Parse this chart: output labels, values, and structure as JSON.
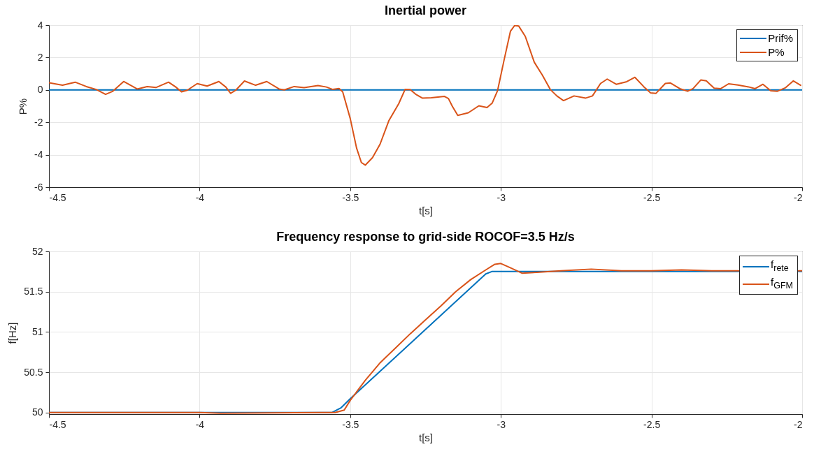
{
  "chart_data": [
    {
      "type": "line",
      "title": "Inertial power",
      "xlabel": "t[s]",
      "ylabel": "P%",
      "xlim": [
        -4.5,
        -2
      ],
      "ylim": [
        -6,
        4
      ],
      "xticks": [
        -4.5,
        -4,
        -3.5,
        -3,
        -2.5,
        -2
      ],
      "yticks": [
        -6,
        -4,
        -2,
        0,
        2,
        4
      ],
      "grid": true,
      "legend": "top right",
      "series": [
        {
          "name": "Prif%",
          "color": "#0072bd",
          "x": [
            -4.5,
            -2
          ],
          "values": [
            0,
            0
          ]
        },
        {
          "name": "P%",
          "color": "#d95319",
          "x": [
            -4.5,
            -4.455,
            -4.413,
            -4.376,
            -4.343,
            -4.312,
            -4.289,
            -4.252,
            -4.207,
            -4.174,
            -4.145,
            -4.103,
            -4.079,
            -4.06,
            -4.041,
            -4.008,
            -3.975,
            -3.936,
            -3.913,
            -3.897,
            -3.88,
            -3.851,
            -3.814,
            -3.777,
            -3.736,
            -3.719,
            -3.686,
            -3.653,
            -3.607,
            -3.579,
            -3.558,
            -3.537,
            -3.525,
            -3.5,
            -3.479,
            -3.463,
            -3.45,
            -3.426,
            -3.401,
            -3.372,
            -3.339,
            -3.318,
            -3.301,
            -3.283,
            -3.261,
            -3.231,
            -3.187,
            -3.174,
            -3.161,
            -3.143,
            -3.108,
            -3.073,
            -3.046,
            -3.029,
            -3.011,
            -2.989,
            -2.968,
            -2.954,
            -2.941,
            -2.919,
            -2.889,
            -2.862,
            -2.836,
            -2.814,
            -2.792,
            -2.757,
            -2.718,
            -2.696,
            -2.669,
            -2.647,
            -2.617,
            -2.582,
            -2.555,
            -2.525,
            -2.503,
            -2.485,
            -2.454,
            -2.437,
            -2.406,
            -2.38,
            -2.362,
            -2.336,
            -2.318,
            -2.292,
            -2.27,
            -2.244,
            -2.213,
            -2.178,
            -2.156,
            -2.13,
            -2.104,
            -2.082,
            -2.055,
            -2.029,
            -2.003
          ],
          "values": [
            0.44,
            0.29,
            0.48,
            0.21,
            0.03,
            -0.27,
            -0.09,
            0.52,
            0.06,
            0.21,
            0.15,
            0.48,
            0.18,
            -0.12,
            -0.02,
            0.39,
            0.24,
            0.52,
            0.18,
            -0.21,
            -0.02,
            0.55,
            0.29,
            0.52,
            0.06,
            0,
            0.21,
            0.14,
            0.27,
            0.18,
            0.03,
            0.09,
            -0.12,
            -1.76,
            -3.58,
            -4.48,
            -4.64,
            -4.18,
            -3.35,
            -1.91,
            -0.85,
            0.03,
            0.02,
            -0.26,
            -0.5,
            -0.48,
            -0.4,
            -0.53,
            -1.01,
            -1.57,
            -1.41,
            -0.98,
            -1.09,
            -0.82,
            -0.05,
            1.87,
            3.63,
            3.98,
            3.95,
            3.31,
            1.71,
            0.91,
            0.03,
            -0.37,
            -0.66,
            -0.37,
            -0.5,
            -0.37,
            0.4,
            0.67,
            0.35,
            0.51,
            0.78,
            0.19,
            -0.18,
            -0.21,
            0.4,
            0.43,
            0.08,
            -0.08,
            0.08,
            0.62,
            0.56,
            0.11,
            0.08,
            0.38,
            0.3,
            0.19,
            0.08,
            0.35,
            -0.05,
            -0.08,
            0.14,
            0.56,
            0.27
          ]
        }
      ]
    },
    {
      "type": "line",
      "title": "Frequency response to grid-side ROCOF=3.5 Hz/s",
      "xlabel": "t[s]",
      "ylabel": "f[Hz]",
      "xlim": [
        -4.5,
        -2
      ],
      "ylim": [
        49.98,
        52
      ],
      "xticks": [
        -4.5,
        -4,
        -3.5,
        -3,
        -2.5,
        -2
      ],
      "yticks": [
        50,
        50.5,
        51,
        51.5,
        52
      ],
      "grid": true,
      "legend": "top right",
      "series": [
        {
          "name": "f$_{rete}$",
          "color": "#0072bd",
          "x": [
            -4.5,
            -3.56,
            -3.53,
            -3.5,
            -3.05,
            -3.03,
            -2
          ],
          "values": [
            50,
            50,
            50.06,
            50.17,
            51.72,
            51.75,
            51.75
          ]
        },
        {
          "name": "f$_{GFM}$",
          "color": "#d95319",
          "x": [
            -4.5,
            -4.0,
            -3.93,
            -3.6,
            -3.55,
            -3.52,
            -3.5,
            -3.47,
            -3.45,
            -3.4,
            -3.35,
            -3.3,
            -3.25,
            -3.2,
            -3.15,
            -3.1,
            -3.05,
            -3.02,
            -3.0,
            -2.97,
            -2.93,
            -2.88,
            -2.8,
            -2.7,
            -2.6,
            -2.5,
            -2.4,
            -2.3,
            -2.22,
            -2.0
          ],
          "values": [
            50,
            50,
            49.99,
            50,
            50,
            50.03,
            50.15,
            50.3,
            50.4,
            50.62,
            50.8,
            50.98,
            51.15,
            51.32,
            51.5,
            51.65,
            51.77,
            51.84,
            51.85,
            51.8,
            51.73,
            51.74,
            51.76,
            51.78,
            51.76,
            51.76,
            51.77,
            51.76,
            51.76,
            51.76
          ]
        }
      ]
    }
  ]
}
